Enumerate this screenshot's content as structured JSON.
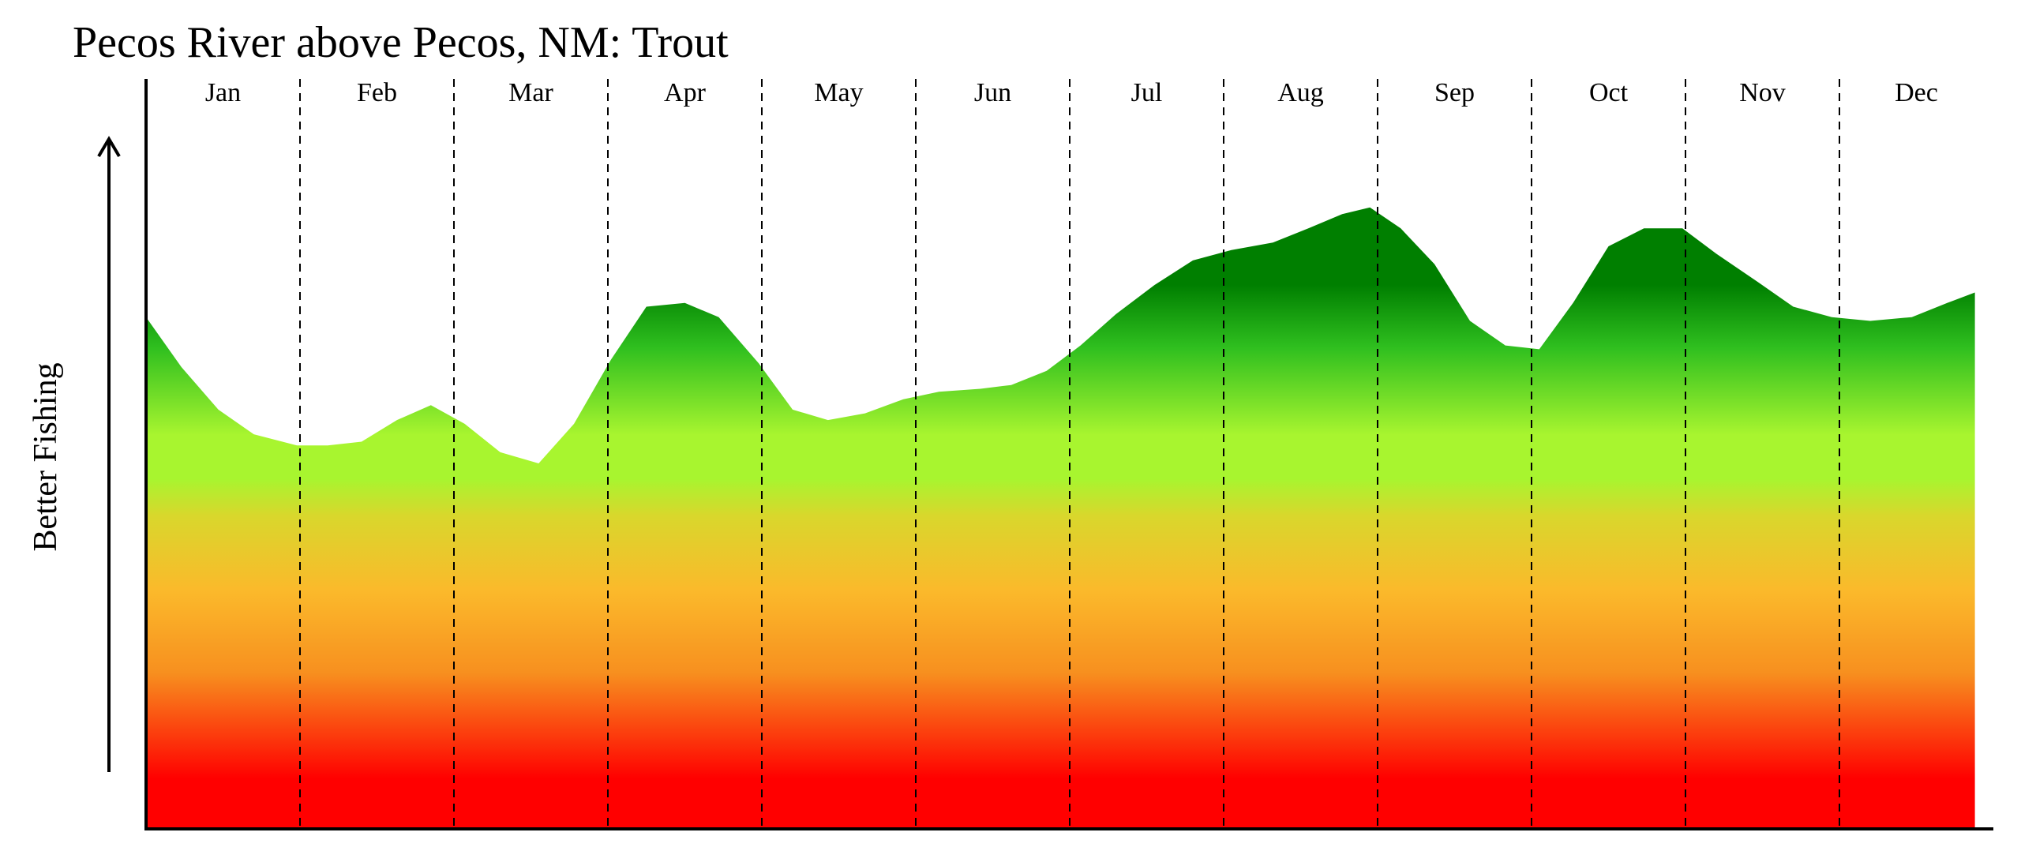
{
  "chart_data": {
    "type": "area",
    "title": "Pecos River above Pecos, NM: Trout",
    "xlabel": "",
    "ylabel": "Better Fishing",
    "months": [
      "Jan",
      "Feb",
      "Mar",
      "Apr",
      "May",
      "Jun",
      "Jul",
      "Aug",
      "Sep",
      "Oct",
      "Nov",
      "Dec"
    ],
    "ylim": [
      0,
      100
    ],
    "grid": "vertical dashed month separators",
    "series": [
      {
        "values": [
          [
            0.0,
            68.6
          ],
          [
            0.23,
            61.9
          ],
          [
            0.47,
            56.2
          ],
          [
            0.7,
            52.9
          ],
          [
            0.98,
            51.4
          ],
          [
            1.18,
            51.4
          ],
          [
            1.4,
            51.9
          ],
          [
            1.63,
            54.8
          ],
          [
            1.85,
            56.8
          ],
          [
            2.07,
            54.3
          ],
          [
            2.3,
            50.5
          ],
          [
            2.55,
            49.0
          ],
          [
            2.78,
            54.3
          ],
          [
            3.02,
            62.9
          ],
          [
            3.25,
            70.0
          ],
          [
            3.5,
            70.5
          ],
          [
            3.72,
            68.6
          ],
          [
            3.98,
            62.4
          ],
          [
            4.2,
            56.2
          ],
          [
            4.43,
            54.8
          ],
          [
            4.67,
            55.7
          ],
          [
            4.92,
            57.6
          ],
          [
            5.15,
            58.6
          ],
          [
            5.42,
            59.0
          ],
          [
            5.62,
            59.5
          ],
          [
            5.85,
            61.4
          ],
          [
            6.07,
            64.8
          ],
          [
            6.3,
            69.0
          ],
          [
            6.55,
            72.9
          ],
          [
            6.8,
            76.2
          ],
          [
            7.05,
            77.6
          ],
          [
            7.32,
            78.6
          ],
          [
            7.55,
            80.5
          ],
          [
            7.77,
            82.4
          ],
          [
            7.95,
            83.3
          ],
          [
            8.15,
            80.5
          ],
          [
            8.37,
            75.7
          ],
          [
            8.6,
            68.1
          ],
          [
            8.83,
            64.8
          ],
          [
            9.05,
            64.3
          ],
          [
            9.27,
            70.5
          ],
          [
            9.5,
            78.1
          ],
          [
            9.73,
            80.5
          ],
          [
            9.98,
            80.5
          ],
          [
            10.2,
            77.1
          ],
          [
            10.47,
            73.3
          ],
          [
            10.7,
            70.0
          ],
          [
            10.95,
            68.6
          ],
          [
            11.2,
            68.1
          ],
          [
            11.47,
            68.6
          ],
          [
            11.7,
            70.5
          ],
          [
            11.88,
            71.9
          ]
        ]
      }
    ],
    "colors": {
      "top": "#007f00",
      "upper_green": "#2fbf1f",
      "lime": "#a8f52f",
      "yellow": "#d9d72c",
      "amber": "#fbb92b",
      "orange": "#f7901f",
      "orange_red": "#f65d1a",
      "bottom": "#ff0000"
    }
  }
}
